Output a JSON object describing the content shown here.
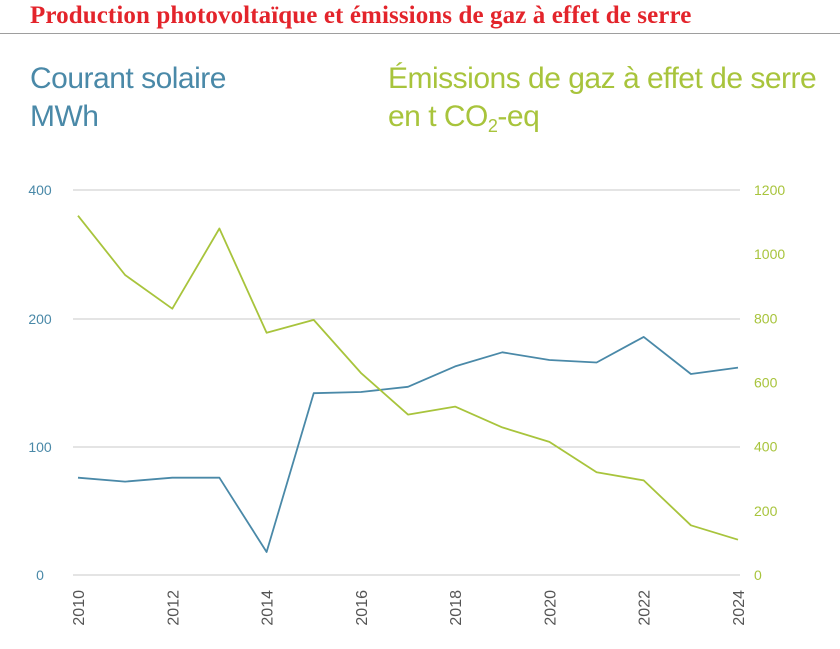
{
  "header": {
    "title": "Production photovoltaïque et émissions de gaz à effet de serre"
  },
  "legend": {
    "left_line1": "Courant solaire",
    "left_line2": "MWh",
    "right_line1": "Émissions de gaz à effet de serre",
    "right_line2_pre": "en t CO",
    "right_line2_sub": "2",
    "right_line2_post": "-eq"
  },
  "colors": {
    "solar": "#4a89a8",
    "emissions": "#a8c43c",
    "title": "#e3242b",
    "grid": "#c8c8c8"
  },
  "chart_data": {
    "type": "line",
    "x": [
      2010,
      2011,
      2012,
      2013,
      2014,
      2015,
      2016,
      2017,
      2018,
      2019,
      2020,
      2021,
      2022,
      2023,
      2024
    ],
    "x_tick_labels": [
      "2010",
      "2012",
      "2014",
      "2016",
      "2018",
      "2020",
      "2022",
      "2024"
    ],
    "x_ticks": [
      2010,
      2012,
      2014,
      2016,
      2018,
      2020,
      2022,
      2024
    ],
    "xlim": [
      2010,
      2024
    ],
    "y_left": {
      "label": "Courant solaire MWh",
      "tick_labels": [
        "0",
        "100",
        "200",
        "400"
      ],
      "tick_values": [
        0,
        100,
        200,
        400
      ],
      "scale_note": "axis break: 0–200 uniform, 200–400 compressed"
    },
    "y_right": {
      "label": "Émissions de gaz à effet de serre en t CO2-eq",
      "tick_labels": [
        "0",
        "200",
        "400",
        "600",
        "800",
        "1000",
        "1200"
      ],
      "tick_values": [
        0,
        200,
        400,
        600,
        800,
        1000,
        1200
      ],
      "ylim": [
        0,
        1200
      ]
    },
    "series": [
      {
        "name": "Courant solaire",
        "axis": "left",
        "values": [
          76,
          73,
          76,
          76,
          18,
          142,
          143,
          147,
          163,
          174,
          168,
          166,
          186,
          157,
          162
        ]
      },
      {
        "name": "Émissions de gaz à effet de serre",
        "axis": "right",
        "values": [
          1120,
          935,
          830,
          1080,
          755,
          795,
          630,
          500,
          525,
          460,
          415,
          320,
          295,
          155,
          110
        ]
      }
    ],
    "grid": true
  }
}
